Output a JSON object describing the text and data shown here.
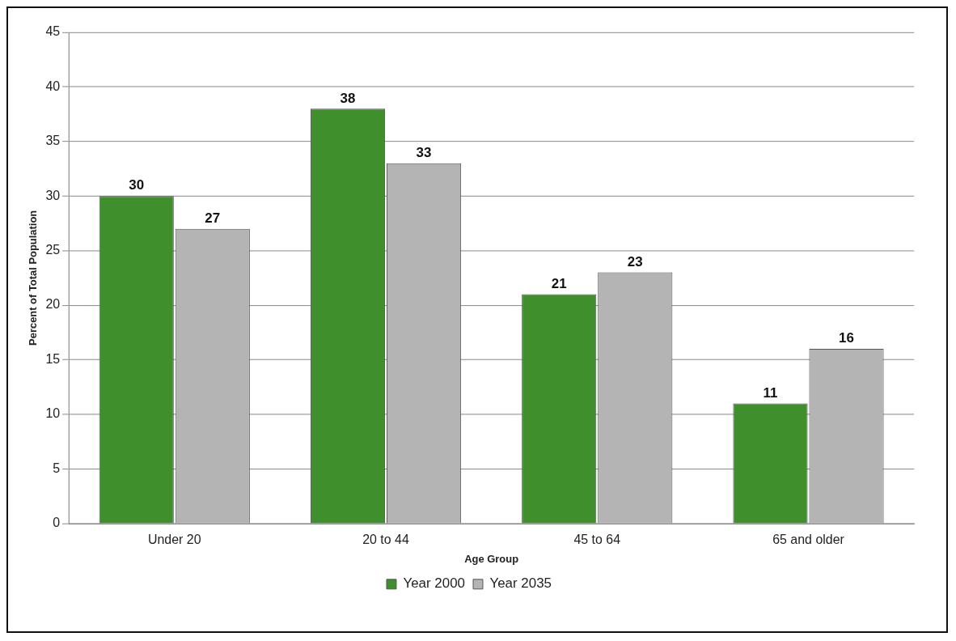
{
  "chart_data": {
    "type": "bar",
    "xlabel": "Age Group",
    "ylabel": "Percent of Total Population",
    "categories": [
      "Under 20",
      "20 to 44",
      "45 to 64",
      "65 and older"
    ],
    "series": [
      {
        "name": "Year 2000",
        "color": "#3f8f2c",
        "values": [
          30,
          38,
          21,
          11
        ]
      },
      {
        "name": "Year 2035",
        "color": "#b4b4b4",
        "values": [
          27,
          33,
          23,
          16
        ]
      }
    ],
    "ylim": [
      0,
      45
    ],
    "yticks": [
      0,
      5,
      10,
      15,
      20,
      25,
      30,
      35,
      40,
      45
    ],
    "grid": "y",
    "legend": "bottom",
    "data_labels": true
  }
}
